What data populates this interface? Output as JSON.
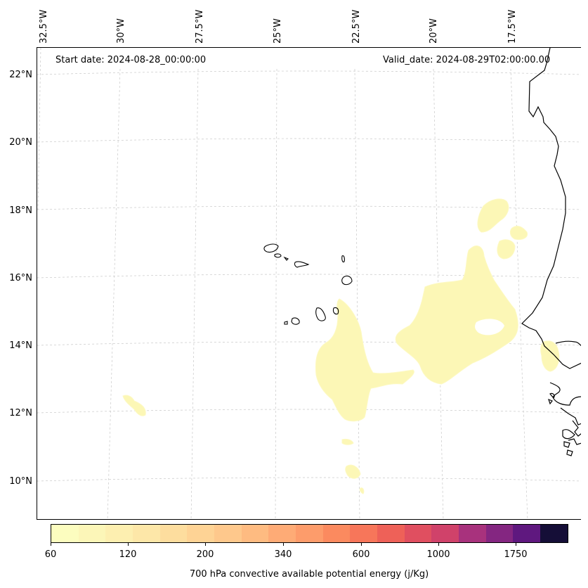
{
  "header": {
    "start_date": "Start date: 2024-08-28_00:00:00",
    "valid_date": "Valid_date: 2024-08-29T02:00:00.00"
  },
  "longitude_labels": [
    "32.5°W",
    "30°W",
    "27.5°W",
    "25°W",
    "22.5°W",
    "20°W",
    "17.5°W"
  ],
  "latitude_labels": [
    "22°N",
    "20°N",
    "18°N",
    "16°N",
    "14°N",
    "12°N",
    "10°N"
  ],
  "colorbar": {
    "title": "700 hPa convective available potential energy (j/Kg)",
    "tick_labels": [
      "60",
      "120",
      "200",
      "340",
      "600",
      "1000",
      "1750"
    ],
    "colors": [
      "#fcfdbf",
      "#fcf6b8",
      "#fdefb0",
      "#fde7a8",
      "#fddd9e",
      "#fed395",
      "#fec88c",
      "#febb81",
      "#feab76",
      "#fd9c6b",
      "#fb8a5f",
      "#f7765a",
      "#ee6158",
      "#e04f60",
      "#d0426a",
      "#a8327d",
      "#842681",
      "#5f187f",
      "#150e37"
    ]
  },
  "map": {
    "field_color": "#fcf7b6",
    "field_color_edge": "#fdf9c2",
    "coastline_color": "#000000",
    "grid_color": "#c8c8c8"
  }
}
